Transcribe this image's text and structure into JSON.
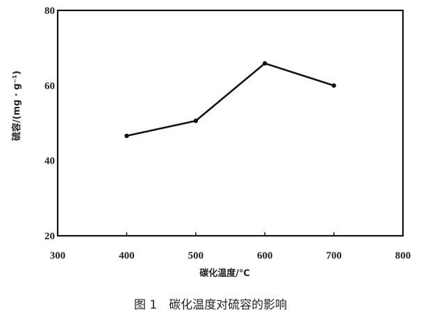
{
  "chart_data": {
    "type": "line",
    "title": "",
    "caption": "图 1　碳化温度对硫容的影响",
    "xlabel": "碳化温度/℃",
    "ylabel": "硫容/(mg · g⁻¹)",
    "xlim": [
      300,
      800
    ],
    "ylim": [
      20,
      80
    ],
    "xticks": [
      "300",
      "400",
      "500",
      "600",
      "700",
      "800"
    ],
    "yticks": [
      "20",
      "40",
      "60",
      "80"
    ],
    "grid": false,
    "series": [
      {
        "x": [
          400,
          500,
          600,
          700
        ],
        "y": [
          46.6,
          50.6,
          65.9,
          60.0
        ],
        "color": "#111111"
      }
    ]
  }
}
